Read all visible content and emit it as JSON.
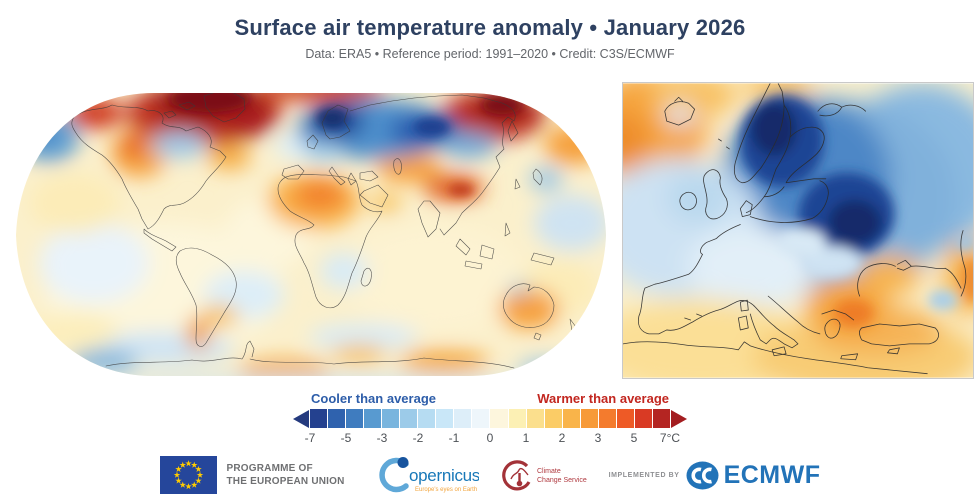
{
  "header": {
    "title": "Surface air temperature anomaly • January 2026",
    "subtitle": "Data: ERA5 • Reference period: 1991–2020 • Credit: C3S/ECMWF"
  },
  "legend": {
    "cooler_label": "Cooler than average",
    "warmer_label": "Warmer than average",
    "cooler_color": "#2d5da9",
    "warmer_color": "#c2261f",
    "arrow_left_color": "#243a7e",
    "arrow_right_color": "#a31d20",
    "ticks": [
      "-7",
      "-5",
      "-3",
      "-2",
      "-1",
      "0",
      "1",
      "2",
      "3",
      "5",
      "7°C"
    ],
    "unit": "°C",
    "segments": [
      "#24418f",
      "#2f62ae",
      "#3f7cbf",
      "#589ad0",
      "#79b5de",
      "#9ccbe9",
      "#b6dcf2",
      "#c9e7f8",
      "#ddeef9",
      "#eef6fb",
      "#fdf6dd",
      "#fcf0b4",
      "#fbdf8d",
      "#fbcc66",
      "#f9b44a",
      "#f79a38",
      "#f47b2d",
      "#ee5a26",
      "#d93a24",
      "#b42522"
    ]
  },
  "footer": {
    "eu_label_line1": "PROGRAMME OF",
    "eu_label_line2": "THE EUROPEAN UNION",
    "copernicus_name": "opernicus",
    "copernicus_tagline": "Europe's eyes on Earth",
    "c3s_line1": "Climate",
    "c3s_line2": "Change Service",
    "implemented_by": "IMPLEMENTED BY",
    "ecmwf_label": "ECMWF"
  },
  "colors": {
    "title": "#2e4161",
    "subtitle": "#63666b",
    "eu_blue": "#25469b",
    "eu_star_yellow": "#ffcc00",
    "copernicus_blue": "#1878b8",
    "copernicus_tagline_orange": "#f2a43c",
    "c3s_red": "#a33238",
    "ecmwf_blue": "#2273b8"
  }
}
